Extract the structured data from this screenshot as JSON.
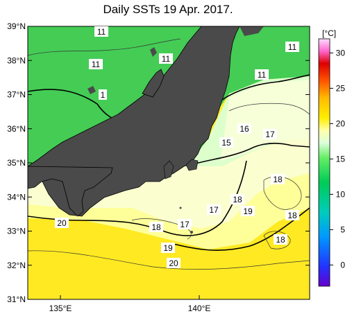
{
  "title": "Daily SSTs 19 Apr. 2017.",
  "axes": {
    "lat_labels": [
      "39°N",
      "38°N",
      "37°N",
      "36°N",
      "35°N",
      "34°N",
      "33°N",
      "32°N",
      "31°N"
    ],
    "lon_labels": [
      "135°E",
      "140°E"
    ]
  },
  "colorbar": {
    "unit": "[°C]",
    "ticks": [
      "30",
      "25",
      "20",
      "15",
      "10",
      "5",
      "0"
    ],
    "range": [
      -3,
      32
    ],
    "colors": [
      "#6600cc",
      "#3300ff",
      "#0066ff",
      "#00aaff",
      "#00dddd",
      "#00cc99",
      "#00cc44",
      "#33dd33",
      "#88ee66",
      "#ccffcc",
      "#ffffcc",
      "#ffff88",
      "#ffee00",
      "#ffcc00",
      "#ff8800",
      "#ff3300",
      "#dd0000",
      "#ff66cc",
      "#ffccff"
    ]
  },
  "contour_labels": [
    {
      "text": "11",
      "id": "c11-a"
    },
    {
      "text": "11",
      "id": "c11-b"
    },
    {
      "text": "11",
      "id": "c11-c"
    },
    {
      "text": "11",
      "id": "c11-d"
    },
    {
      "text": "11",
      "id": "c11-e"
    },
    {
      "text": "1",
      "id": "c1-f"
    },
    {
      "text": "16",
      "id": "c16"
    },
    {
      "text": "17",
      "id": "c17-a"
    },
    {
      "text": "15",
      "id": "c15"
    },
    {
      "text": "18",
      "id": "c18-a"
    },
    {
      "text": "17",
      "id": "c17-b"
    },
    {
      "text": "18",
      "id": "c18-b"
    },
    {
      "text": "19",
      "id": "c19-a"
    },
    {
      "text": "18",
      "id": "c18-c"
    },
    {
      "text": "20",
      "id": "c20-a"
    },
    {
      "text": "18",
      "id": "c18-d"
    },
    {
      "text": "17",
      "id": "c17-c"
    },
    {
      "text": "18",
      "id": "c18-e"
    },
    {
      "text": "19",
      "id": "c19-b"
    },
    {
      "text": "20",
      "id": "c20-b"
    }
  ]
}
